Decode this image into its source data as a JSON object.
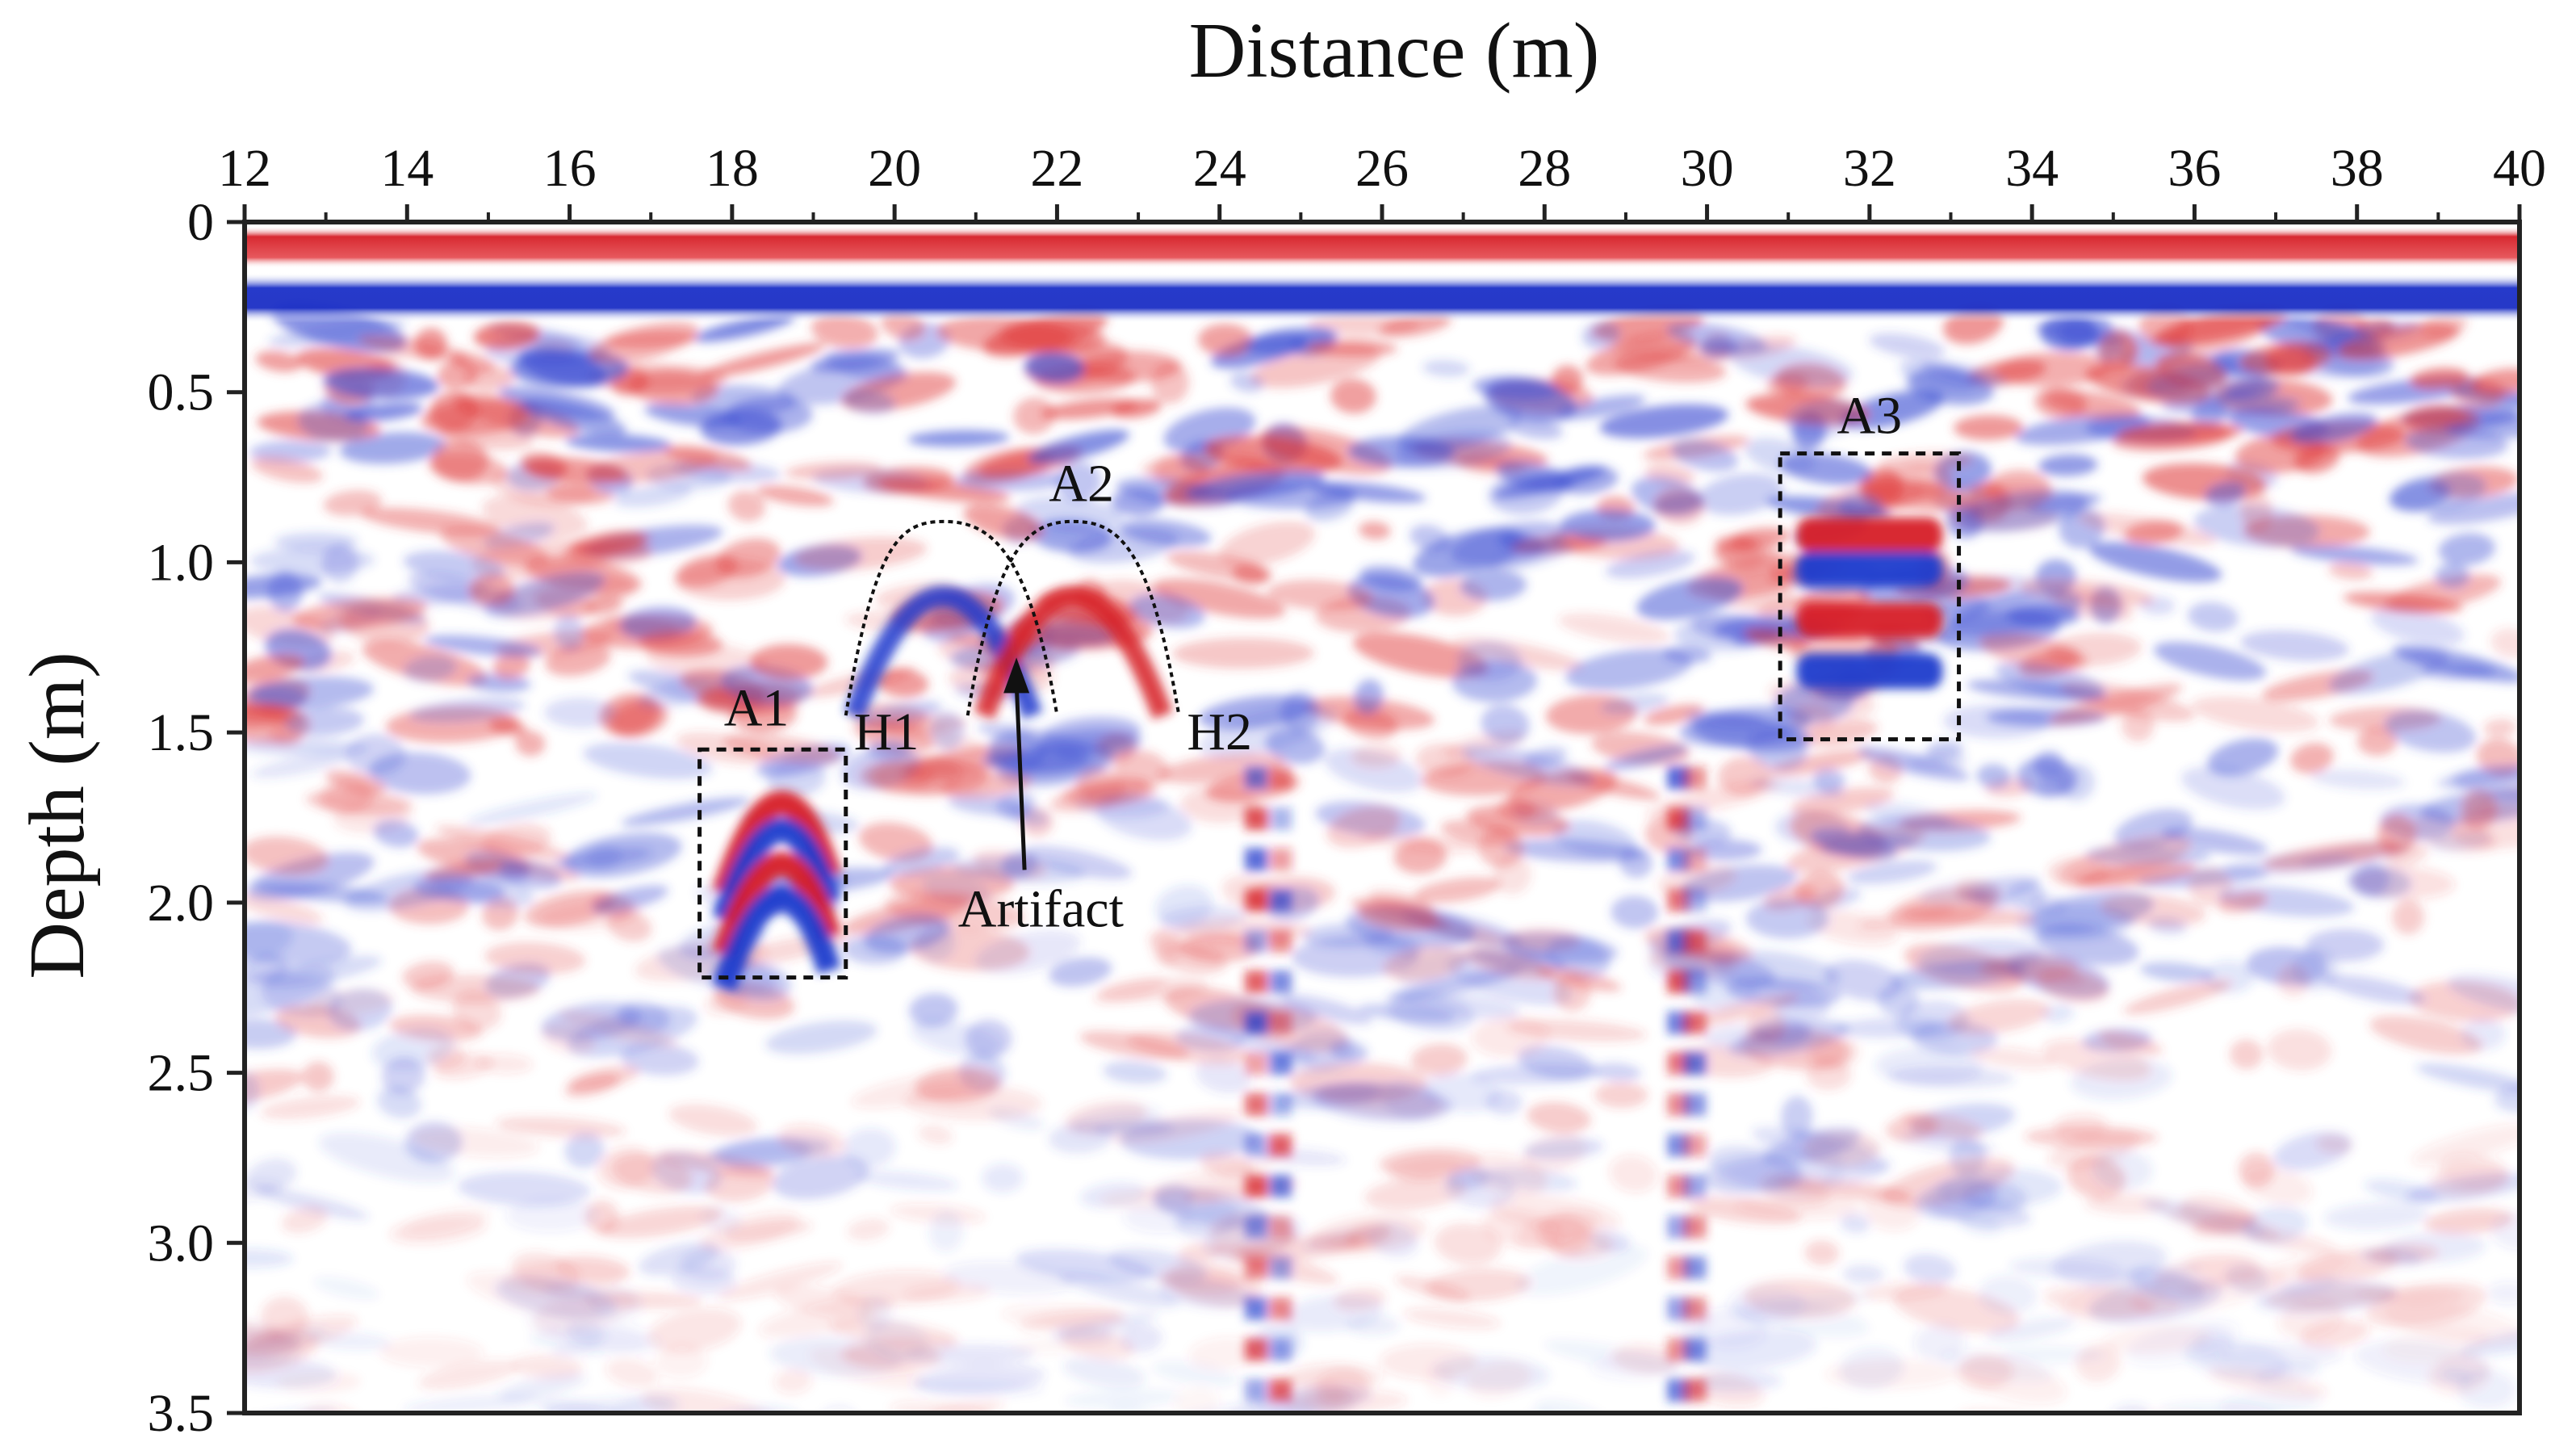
{
  "chart_data": {
    "type": "heatmap",
    "subtype": "GPR radargram",
    "colormap": [
      "#d0202a",
      "#ffffff",
      "#1f3bcc"
    ],
    "xlabel": "Distance (m)",
    "ylabel": "Depth (m)",
    "xlim": [
      12,
      40
    ],
    "ylim": [
      0,
      3.5
    ],
    "x_ticks": [
      12,
      14,
      16,
      18,
      20,
      22,
      24,
      26,
      28,
      30,
      32,
      34,
      36,
      38,
      40
    ],
    "x_tick_labels": [
      "12",
      "14",
      "16",
      "18",
      "20",
      "22",
      "24",
      "26",
      "28",
      "30",
      "32",
      "34",
      "36",
      "38",
      "40"
    ],
    "y_ticks": [
      0,
      0.5,
      1.0,
      1.5,
      2.0,
      2.5,
      3.0,
      3.5
    ],
    "y_tick_labels": [
      "0",
      "0.5",
      "1.0",
      "1.5",
      "2.0",
      "2.5",
      "3.0",
      "3.5"
    ],
    "surface_reflections": [
      {
        "polarity": "positive",
        "depth_range": [
          0.02,
          0.14
        ]
      },
      {
        "polarity": "negative",
        "depth_range": [
          0.16,
          0.28
        ]
      }
    ],
    "anomalies": [
      {
        "label": "A1",
        "x_range": [
          17.6,
          19.4
        ],
        "depth_range": [
          1.55,
          2.22
        ]
      },
      {
        "label": "A3",
        "x_range": [
          30.9,
          33.1
        ],
        "depth_range": [
          0.68,
          1.52
        ]
      }
    ],
    "hyperbolas": [
      {
        "label": "H1",
        "apex_x": 20.6,
        "apex_depth": 0.88,
        "x_range": [
          19.4,
          22.0
        ]
      },
      {
        "label": "H2",
        "apex_x": 22.2,
        "apex_depth": 0.88,
        "x_range": [
          20.9,
          23.5
        ]
      }
    ],
    "annotations": [
      {
        "text": "A1",
        "x": 18.3,
        "depth": 1.48
      },
      {
        "text": "A2",
        "x": 22.3,
        "depth": 0.82
      },
      {
        "text": "A3",
        "x": 32.0,
        "depth": 0.62
      },
      {
        "text": "H1",
        "x": 19.9,
        "depth": 1.55
      },
      {
        "text": "H2",
        "x": 24.0,
        "depth": 1.55
      },
      {
        "text": "Artifact",
        "x": 21.8,
        "depth": 2.07,
        "arrow_to": {
          "x": 21.5,
          "depth": 1.28
        }
      }
    ]
  }
}
